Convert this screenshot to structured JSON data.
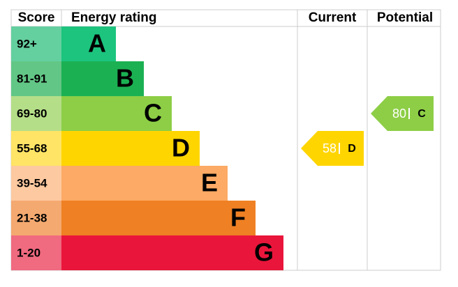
{
  "header": {
    "score": "Score",
    "rating": "Energy rating",
    "current": "Current",
    "potential": "Potential"
  },
  "bands": [
    {
      "score": "92+",
      "letter": "A",
      "color": "#1cc47e",
      "light": "#64cf9f"
    },
    {
      "score": "81-91",
      "letter": "B",
      "color": "#1bb153",
      "light": "#62c686"
    },
    {
      "score": "69-80",
      "letter": "C",
      "color": "#8dce46",
      "light": "#b5de88"
    },
    {
      "score": "55-68",
      "letter": "D",
      "color": "#ffd500",
      "light": "#ffe465"
    },
    {
      "score": "39-54",
      "letter": "E",
      "color": "#fcaa65",
      "light": "#fdc9a0"
    },
    {
      "score": "21-38",
      "letter": "F",
      "color": "#ef8023",
      "light": "#f4a970"
    },
    {
      "score": "1-20",
      "letter": "G",
      "color": "#e9153b",
      "light": "#f06a80"
    }
  ],
  "current": {
    "value": 58,
    "rating": "D"
  },
  "potential": {
    "value": 80,
    "rating": "C"
  }
}
